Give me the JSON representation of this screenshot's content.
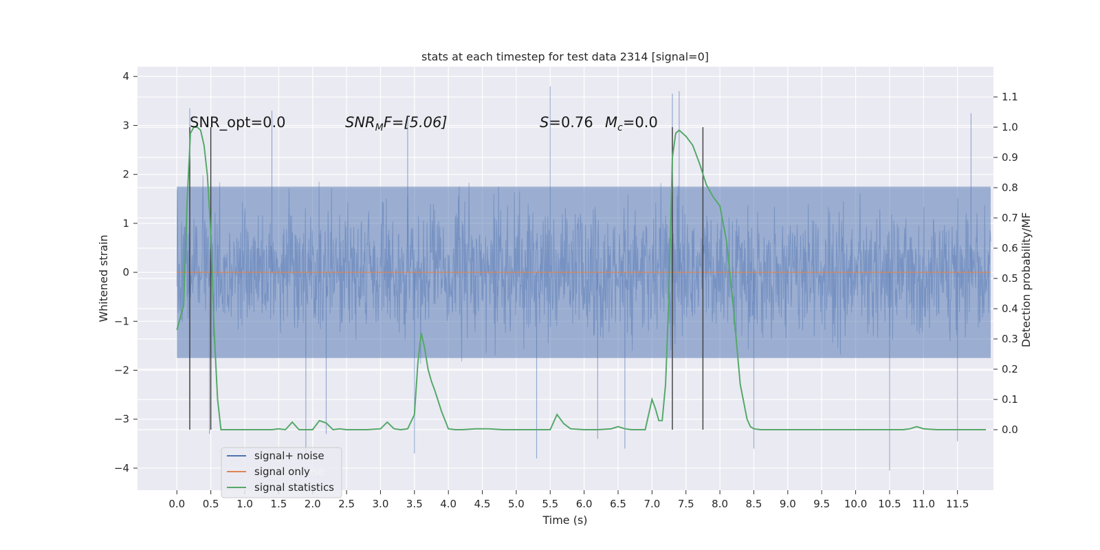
{
  "chart_data": {
    "type": "line",
    "title": "stats at each timestep for test data 2314 [signal=0]",
    "xlabel": "Time (s)",
    "ylabel_left": "Whitened strain",
    "ylabel_right": "Detection probability/MF",
    "xlim": [
      -0.58,
      12.03
    ],
    "ylim_left": [
      -4.45,
      4.2
    ],
    "ylim_right": [
      -0.2,
      1.2
    ],
    "x_ticks": [
      "0.0",
      "0.5",
      "1.0",
      "1.5",
      "2.0",
      "2.5",
      "3.0",
      "3.5",
      "4.0",
      "4.5",
      "5.0",
      "5.5",
      "6.0",
      "6.5",
      "7.0",
      "7.5",
      "8.0",
      "8.5",
      "9.0",
      "9.5",
      "10.0",
      "10.5",
      "11.0",
      "11.5"
    ],
    "y_ticks_left": [
      "4",
      "3",
      "2",
      "1",
      "0",
      "−1",
      "−2",
      "−3",
      "−4"
    ],
    "y_ticks_right": [
      "1.1",
      "1.0",
      "0.9",
      "0.8",
      "0.7",
      "0.6",
      "0.5",
      "0.4",
      "0.3",
      "0.2",
      "0.1",
      "0.0"
    ],
    "grid": true,
    "legend_position": "lower-left",
    "legend": [
      {
        "label": "signal+ noise",
        "color": "#4c72b0"
      },
      {
        "label": "signal only",
        "color": "#dd8452"
      },
      {
        "label": "signal statistics",
        "color": "#55a868"
      }
    ],
    "legend_ghost_text": "ise",
    "annotations": {
      "snr_opt": "SNR_opt=0.0",
      "snr_mf_prefix": "SNR",
      "snr_mf_sub": "M",
      "snr_mf_suffix": "F=[5.06]",
      "s_label": "S",
      "s_value": "=0.76",
      "mc_label": "M",
      "mc_sub": "c",
      "mc_value": "=0.0"
    },
    "noise_series": {
      "name": "signal+ noise",
      "x_range": [
        0.0,
        11.99
      ],
      "typical_envelope": [
        -1.7,
        1.7
      ],
      "spikes": [
        {
          "x": 0.19,
          "y": 3.35
        },
        {
          "x": 0.19,
          "y": -2.8
        },
        {
          "x": 0.48,
          "y": -3.3
        },
        {
          "x": 1.4,
          "y": 3.3
        },
        {
          "x": 1.9,
          "y": -3.7
        },
        {
          "x": 2.2,
          "y": -3.3
        },
        {
          "x": 3.5,
          "y": -3.7
        },
        {
          "x": 5.5,
          "y": 3.8
        },
        {
          "x": 5.3,
          "y": -3.8
        },
        {
          "x": 6.2,
          "y": -3.4
        },
        {
          "x": 6.6,
          "y": -3.6
        },
        {
          "x": 7.4,
          "y": 3.7
        },
        {
          "x": 7.3,
          "y": 3.65
        },
        {
          "x": 8.5,
          "y": -3.6
        },
        {
          "x": 10.5,
          "y": -4.05
        },
        {
          "x": 11.5,
          "y": -3.45
        },
        {
          "x": 11.7,
          "y": 3.25
        },
        {
          "x": 3.4,
          "y": 3.2
        }
      ]
    },
    "signal_only": {
      "name": "signal only",
      "x_range": [
        0.0,
        11.99
      ],
      "value": 0.0
    },
    "statistics_series": {
      "name": "signal statistics",
      "x": [
        0.0,
        0.05,
        0.1,
        0.15,
        0.2,
        0.25,
        0.3,
        0.35,
        0.4,
        0.45,
        0.5,
        0.55,
        0.6,
        0.65,
        0.7,
        0.75,
        0.8,
        0.9,
        1.0,
        1.1,
        1.2,
        1.3,
        1.4,
        1.5,
        1.6,
        1.7,
        1.8,
        1.9,
        2.0,
        2.1,
        2.2,
        2.3,
        2.4,
        2.5,
        2.6,
        2.8,
        3.0,
        3.1,
        3.2,
        3.3,
        3.4,
        3.5,
        3.55,
        3.6,
        3.65,
        3.7,
        3.75,
        3.8,
        3.9,
        4.0,
        4.1,
        4.2,
        4.4,
        4.6,
        4.8,
        5.0,
        5.4,
        5.5,
        5.6,
        5.7,
        5.8,
        6.0,
        6.2,
        6.4,
        6.5,
        6.6,
        6.7,
        6.8,
        6.9,
        7.0,
        7.05,
        7.1,
        7.15,
        7.2,
        7.25,
        7.3,
        7.35,
        7.4,
        7.5,
        7.6,
        7.7,
        7.8,
        7.9,
        8.0,
        8.1,
        8.2,
        8.3,
        8.4,
        8.45,
        8.5,
        8.6,
        8.8,
        9.0,
        9.5,
        10.0,
        10.5,
        10.7,
        10.8,
        10.9,
        11.0,
        11.2,
        11.5,
        11.8,
        11.92
      ],
      "y": [
        0.33,
        0.37,
        0.41,
        0.75,
        0.98,
        1.0,
        1.0,
        0.99,
        0.94,
        0.84,
        0.65,
        0.32,
        0.1,
        0.0,
        0.0,
        0.0,
        0.0,
        0.0,
        0.0,
        0.0,
        0.0,
        0.0,
        0.0,
        0.003,
        0.0,
        0.025,
        0.0,
        0.0,
        0.0,
        0.03,
        0.022,
        0.0,
        0.003,
        0.0,
        0.0,
        0.0,
        0.003,
        0.025,
        0.003,
        0.0,
        0.003,
        0.05,
        0.22,
        0.32,
        0.27,
        0.2,
        0.16,
        0.13,
        0.06,
        0.003,
        0.0,
        0.0,
        0.003,
        0.003,
        0.0,
        0.0,
        0.0,
        0.0,
        0.05,
        0.02,
        0.003,
        0.0,
        0.0,
        0.003,
        0.01,
        0.003,
        0.0,
        0.0,
        0.0,
        0.1,
        0.07,
        0.03,
        0.03,
        0.15,
        0.45,
        0.9,
        0.98,
        0.99,
        0.97,
        0.94,
        0.88,
        0.81,
        0.77,
        0.74,
        0.62,
        0.4,
        0.15,
        0.035,
        0.01,
        0.003,
        0.0,
        0.0,
        0.0,
        0.0,
        0.0,
        0.0,
        0.0,
        0.003,
        0.01,
        0.003,
        0.0,
        0.0,
        0.0,
        0.0
      ]
    },
    "vertical_markers": [
      {
        "x": 0.19,
        "y_range": [
          0.0,
          1.0
        ]
      },
      {
        "x": 0.5,
        "y_range": [
          0.0,
          1.0
        ]
      },
      {
        "x": 7.3,
        "y_range": [
          0.0,
          1.0
        ]
      },
      {
        "x": 7.75,
        "y_range": [
          0.0,
          1.0
        ]
      }
    ]
  }
}
